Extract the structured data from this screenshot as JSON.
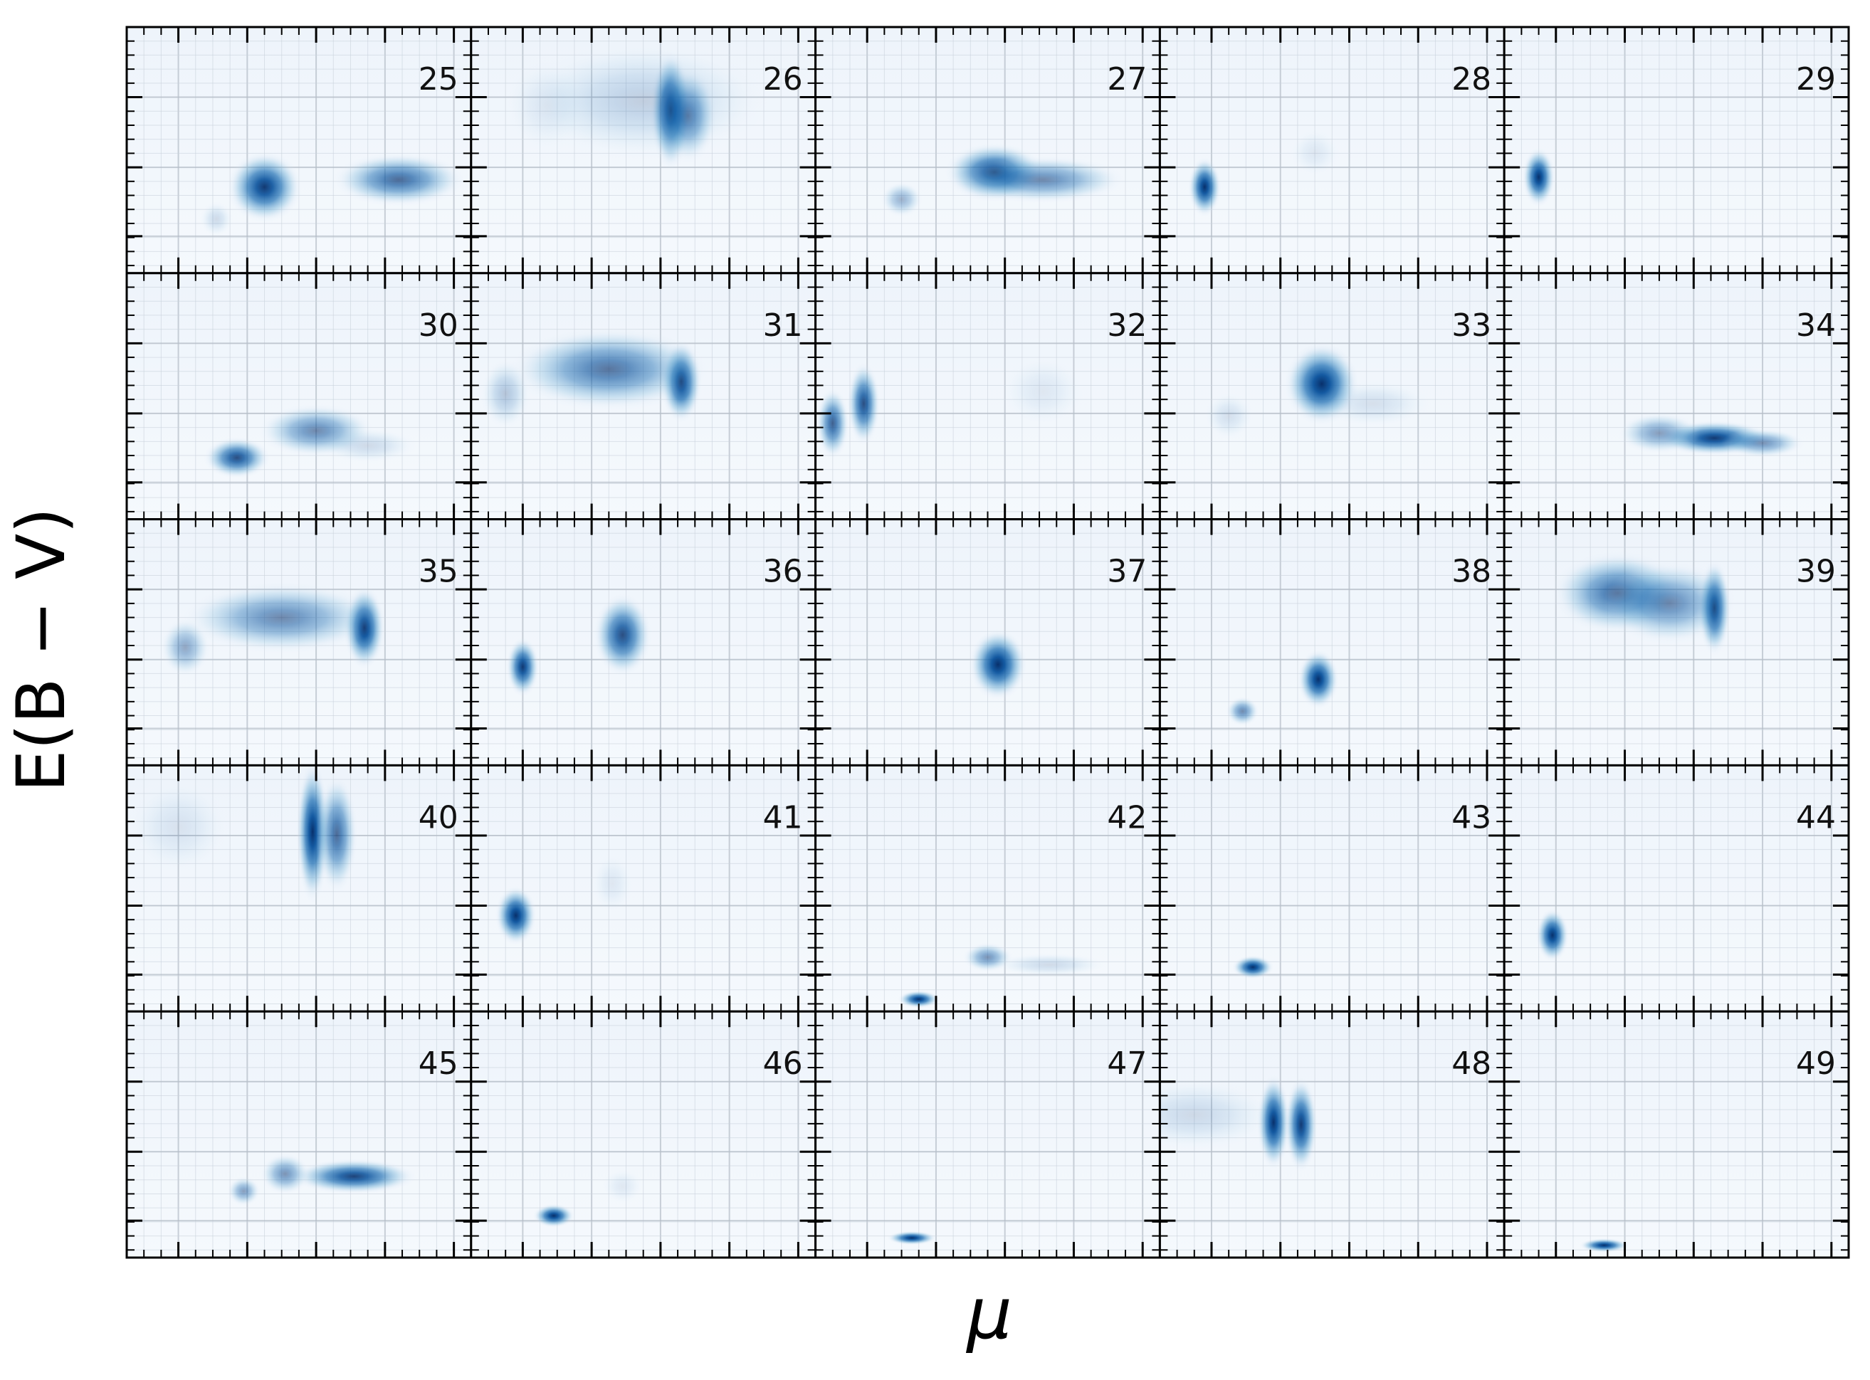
{
  "chart_data": {
    "type": "heatmap",
    "colormap": "Blues",
    "grid": true,
    "xlabel": "μ",
    "ylabel": "E(B − V)",
    "layout": {
      "rows": 5,
      "cols": 5
    },
    "panels": [
      {
        "label": "25",
        "blobs": [
          {
            "x": 0.4,
            "y": 0.35,
            "sx": 0.045,
            "sy": 0.06,
            "a": 0.95
          },
          {
            "x": 0.79,
            "y": 0.38,
            "sx": 0.08,
            "sy": 0.045,
            "a": 0.7
          },
          {
            "x": 0.26,
            "y": 0.22,
            "sx": 0.02,
            "sy": 0.03,
            "a": 0.15
          }
        ]
      },
      {
        "label": "26",
        "blobs": [
          {
            "x": 0.58,
            "y": 0.66,
            "sx": 0.025,
            "sy": 0.1,
            "a": 1.0
          },
          {
            "x": 0.63,
            "y": 0.64,
            "sx": 0.035,
            "sy": 0.08,
            "a": 0.6
          },
          {
            "x": 0.5,
            "y": 0.7,
            "sx": 0.15,
            "sy": 0.1,
            "a": 0.2
          },
          {
            "x": 0.22,
            "y": 0.68,
            "sx": 0.05,
            "sy": 0.08,
            "a": 0.08
          }
        ]
      },
      {
        "label": "27",
        "blobs": [
          {
            "x": 0.52,
            "y": 0.41,
            "sx": 0.06,
            "sy": 0.05,
            "a": 0.9
          },
          {
            "x": 0.66,
            "y": 0.38,
            "sx": 0.1,
            "sy": 0.04,
            "a": 0.55
          },
          {
            "x": 0.25,
            "y": 0.3,
            "sx": 0.025,
            "sy": 0.03,
            "a": 0.35
          }
        ]
      },
      {
        "label": "28",
        "blobs": [
          {
            "x": 0.13,
            "y": 0.35,
            "sx": 0.02,
            "sy": 0.05,
            "a": 1.0
          },
          {
            "x": 0.45,
            "y": 0.49,
            "sx": 0.03,
            "sy": 0.04,
            "a": 0.08
          }
        ]
      },
      {
        "label": "29",
        "blobs": [
          {
            "x": 0.1,
            "y": 0.39,
            "sx": 0.02,
            "sy": 0.05,
            "a": 1.0
          }
        ]
      },
      {
        "label": "30",
        "blobs": [
          {
            "x": 0.32,
            "y": 0.25,
            "sx": 0.04,
            "sy": 0.035,
            "a": 0.85
          },
          {
            "x": 0.55,
            "y": 0.36,
            "sx": 0.07,
            "sy": 0.045,
            "a": 0.55
          },
          {
            "x": 0.7,
            "y": 0.3,
            "sx": 0.06,
            "sy": 0.03,
            "a": 0.15
          }
        ]
      },
      {
        "label": "31",
        "blobs": [
          {
            "x": 0.61,
            "y": 0.56,
            "sx": 0.025,
            "sy": 0.07,
            "a": 1.0
          },
          {
            "x": 0.4,
            "y": 0.61,
            "sx": 0.12,
            "sy": 0.07,
            "a": 0.65
          },
          {
            "x": 0.1,
            "y": 0.51,
            "sx": 0.03,
            "sy": 0.06,
            "a": 0.25
          }
        ]
      },
      {
        "label": "32",
        "blobs": [
          {
            "x": 0.14,
            "y": 0.47,
            "sx": 0.02,
            "sy": 0.07,
            "a": 0.85
          },
          {
            "x": 0.05,
            "y": 0.39,
            "sx": 0.02,
            "sy": 0.06,
            "a": 0.75
          },
          {
            "x": 0.66,
            "y": 0.52,
            "sx": 0.05,
            "sy": 0.06,
            "a": 0.08
          }
        ]
      },
      {
        "label": "33",
        "blobs": [
          {
            "x": 0.47,
            "y": 0.55,
            "sx": 0.045,
            "sy": 0.07,
            "a": 1.0
          },
          {
            "x": 0.62,
            "y": 0.47,
            "sx": 0.07,
            "sy": 0.04,
            "a": 0.12
          },
          {
            "x": 0.2,
            "y": 0.42,
            "sx": 0.03,
            "sy": 0.04,
            "a": 0.12
          }
        ]
      },
      {
        "label": "34",
        "blobs": [
          {
            "x": 0.61,
            "y": 0.33,
            "sx": 0.07,
            "sy": 0.03,
            "a": 0.95
          },
          {
            "x": 0.45,
            "y": 0.35,
            "sx": 0.05,
            "sy": 0.035,
            "a": 0.45
          },
          {
            "x": 0.75,
            "y": 0.31,
            "sx": 0.05,
            "sy": 0.025,
            "a": 0.5
          }
        ]
      },
      {
        "label": "35",
        "blobs": [
          {
            "x": 0.69,
            "y": 0.56,
            "sx": 0.025,
            "sy": 0.07,
            "a": 1.0
          },
          {
            "x": 0.45,
            "y": 0.6,
            "sx": 0.12,
            "sy": 0.06,
            "a": 0.55
          },
          {
            "x": 0.17,
            "y": 0.48,
            "sx": 0.03,
            "sy": 0.05,
            "a": 0.4
          }
        ]
      },
      {
        "label": "36",
        "blobs": [
          {
            "x": 0.15,
            "y": 0.4,
            "sx": 0.02,
            "sy": 0.05,
            "a": 0.95
          },
          {
            "x": 0.44,
            "y": 0.53,
            "sx": 0.035,
            "sy": 0.07,
            "a": 0.85
          }
        ]
      },
      {
        "label": "37",
        "blobs": [
          {
            "x": 0.53,
            "y": 0.41,
            "sx": 0.035,
            "sy": 0.06,
            "a": 1.0
          }
        ]
      },
      {
        "label": "38",
        "blobs": [
          {
            "x": 0.46,
            "y": 0.35,
            "sx": 0.025,
            "sy": 0.05,
            "a": 1.0
          },
          {
            "x": 0.24,
            "y": 0.22,
            "sx": 0.02,
            "sy": 0.025,
            "a": 0.55
          }
        ]
      },
      {
        "label": "39",
        "blobs": [
          {
            "x": 0.61,
            "y": 0.64,
            "sx": 0.02,
            "sy": 0.08,
            "a": 1.0
          },
          {
            "x": 0.33,
            "y": 0.7,
            "sx": 0.08,
            "sy": 0.07,
            "a": 0.7
          },
          {
            "x": 0.48,
            "y": 0.66,
            "sx": 0.08,
            "sy": 0.07,
            "a": 0.55
          }
        ]
      },
      {
        "label": "40",
        "blobs": [
          {
            "x": 0.54,
            "y": 0.73,
            "sx": 0.02,
            "sy": 0.12,
            "a": 1.0
          },
          {
            "x": 0.61,
            "y": 0.72,
            "sx": 0.025,
            "sy": 0.1,
            "a": 0.7
          },
          {
            "x": 0.15,
            "y": 0.75,
            "sx": 0.06,
            "sy": 0.08,
            "a": 0.1
          }
        ]
      },
      {
        "label": "41",
        "blobs": [
          {
            "x": 0.13,
            "y": 0.39,
            "sx": 0.025,
            "sy": 0.05,
            "a": 1.0
          },
          {
            "x": 0.41,
            "y": 0.52,
            "sx": 0.025,
            "sy": 0.05,
            "a": 0.08
          }
        ]
      },
      {
        "label": "42",
        "blobs": [
          {
            "x": 0.3,
            "y": 0.05,
            "sx": 0.025,
            "sy": 0.015,
            "a": 1.0
          },
          {
            "x": 0.5,
            "y": 0.22,
            "sx": 0.03,
            "sy": 0.025,
            "a": 0.5
          },
          {
            "x": 0.68,
            "y": 0.19,
            "sx": 0.07,
            "sy": 0.02,
            "a": 0.15
          }
        ]
      },
      {
        "label": "43",
        "blobs": [
          {
            "x": 0.27,
            "y": 0.18,
            "sx": 0.025,
            "sy": 0.02,
            "a": 1.0
          }
        ]
      },
      {
        "label": "44",
        "blobs": [
          {
            "x": 0.14,
            "y": 0.31,
            "sx": 0.02,
            "sy": 0.045,
            "a": 1.0
          }
        ]
      },
      {
        "label": "45",
        "blobs": [
          {
            "x": 0.66,
            "y": 0.33,
            "sx": 0.075,
            "sy": 0.03,
            "a": 0.9
          },
          {
            "x": 0.46,
            "y": 0.34,
            "sx": 0.03,
            "sy": 0.035,
            "a": 0.5
          },
          {
            "x": 0.34,
            "y": 0.27,
            "sx": 0.02,
            "sy": 0.025,
            "a": 0.45
          }
        ]
      },
      {
        "label": "46",
        "blobs": [
          {
            "x": 0.24,
            "y": 0.17,
            "sx": 0.025,
            "sy": 0.02,
            "a": 1.0
          },
          {
            "x": 0.44,
            "y": 0.29,
            "sx": 0.025,
            "sy": 0.03,
            "a": 0.08
          }
        ]
      },
      {
        "label": "47",
        "blobs": [
          {
            "x": 0.28,
            "y": 0.08,
            "sx": 0.03,
            "sy": 0.012,
            "a": 1.0
          }
        ]
      },
      {
        "label": "48",
        "blobs": [
          {
            "x": 0.33,
            "y": 0.55,
            "sx": 0.02,
            "sy": 0.08,
            "a": 1.0
          },
          {
            "x": 0.41,
            "y": 0.54,
            "sx": 0.02,
            "sy": 0.08,
            "a": 0.95
          },
          {
            "x": 0.1,
            "y": 0.58,
            "sx": 0.1,
            "sy": 0.06,
            "a": 0.15
          }
        ]
      },
      {
        "label": "49",
        "blobs": [
          {
            "x": 0.29,
            "y": 0.05,
            "sx": 0.03,
            "sy": 0.012,
            "a": 1.0
          }
        ]
      }
    ]
  }
}
